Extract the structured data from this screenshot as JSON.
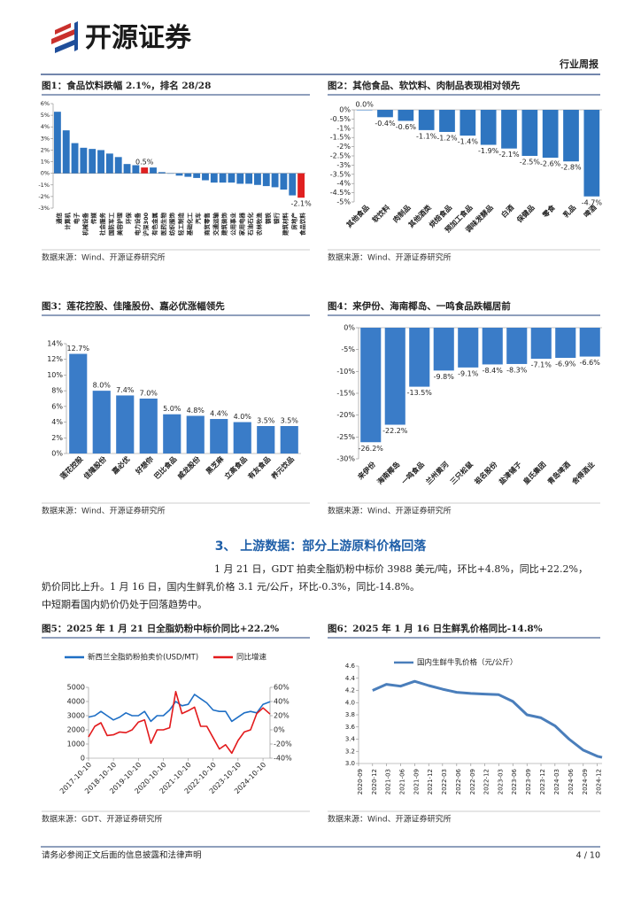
{
  "header": {
    "logo_text": "开源证券",
    "report_type": "行业周报"
  },
  "section_heading": "3、 上游数据：部分上游原料价格回落",
  "paragraph": [
    "1 月 21 日，GDT 拍卖全脂奶粉中标价 3988 美元/吨，环比+4.8%，同比+22.2%，",
    "奶价同比上升。1 月 16 日，国内生鲜乳价格 3.1 元/公斤，环比-0.3%，同比-14.8%。",
    "中短期看国内奶价仍处于回落趋势中。"
  ],
  "footer": {
    "disclaimer": "请务必参阅正文后面的信息披露和法律声明",
    "page": "4 / 10"
  },
  "chart_data": [
    {
      "type": "bar",
      "title": "图1：食品饮料跌幅 2.1%，排名 28/28",
      "source": "数据来源：Wind、开源证券研究所",
      "categories": [
        "通信",
        "计算机",
        "电子",
        "机械设备",
        "传媒",
        "社会服务",
        "国防军工",
        "美容护理",
        "环保",
        "电力设备",
        "沪深300",
        "有色金属",
        "医药生物",
        "纺织服饰",
        "轻工制造",
        "基础化工",
        "汽车",
        "商贸零售",
        "交通运输",
        "建筑装饰",
        "公用事业",
        "家用电器",
        "石油石化",
        "农林牧渔",
        "钢铁",
        "银行",
        "建筑材料",
        "房地产",
        "食品饮料"
      ],
      "values": [
        5.3,
        3.7,
        2.6,
        2.2,
        2.1,
        2.0,
        1.7,
        1.4,
        0.8,
        0.7,
        0.5,
        0.5,
        0.1,
        0.0,
        -0.2,
        -0.3,
        -0.4,
        -0.6,
        -0.8,
        -0.8,
        -0.8,
        -0.9,
        -0.9,
        -1.0,
        -1.1,
        -1.2,
        -1.4,
        -1.9,
        -2.1
      ],
      "value_labels": [
        null,
        null,
        null,
        null,
        null,
        null,
        null,
        null,
        null,
        null,
        "0.5%",
        null,
        null,
        null,
        null,
        null,
        null,
        null,
        null,
        null,
        null,
        null,
        null,
        null,
        null,
        null,
        null,
        null,
        "-2.1%"
      ],
      "colors": [
        "#2e75c0",
        "#2e75c0",
        "#2e75c0",
        "#2e75c0",
        "#2e75c0",
        "#2e75c0",
        "#2e75c0",
        "#2e75c0",
        "#2e75c0",
        "#2e75c0",
        "#e02020",
        "#2e75c0",
        "#2e75c0",
        "#2e75c0",
        "#2e75c0",
        "#2e75c0",
        "#2e75c0",
        "#2e75c0",
        "#2e75c0",
        "#2e75c0",
        "#2e75c0",
        "#2e75c0",
        "#2e75c0",
        "#2e75c0",
        "#2e75c0",
        "#2e75c0",
        "#2e75c0",
        "#2e75c0",
        "#e02020"
      ],
      "ylim": [
        -3,
        6
      ],
      "yticks": [
        {
          "value": -3,
          "label": "-3%"
        },
        {
          "value": -2,
          "label": "-2%"
        },
        {
          "value": -1,
          "label": "-1%"
        },
        {
          "value": 0,
          "label": "0%"
        },
        {
          "value": 1,
          "label": "1%"
        },
        {
          "value": 2,
          "label": "2%"
        },
        {
          "value": 3,
          "label": "3%"
        },
        {
          "value": 4,
          "label": "4%"
        },
        {
          "value": 5,
          "label": "5%"
        },
        {
          "value": 6,
          "label": "6%"
        }
      ]
    },
    {
      "type": "bar",
      "title": "图2：其他食品、软饮料、肉制品表现相对领先",
      "source": "数据来源：Wind、开源证券研究所",
      "color": "#2e75c0",
      "categories": [
        "其他食品",
        "软饮料",
        "肉制品",
        "其他酒类",
        "烘焙食品",
        "预加工食品",
        "调味发酵品",
        "白酒",
        "保健品",
        "零食",
        "乳品",
        "啤酒"
      ],
      "values": [
        0.0,
        -0.4,
        -0.6,
        -1.1,
        -1.2,
        -1.4,
        -1.9,
        -2.1,
        -2.5,
        -2.6,
        -2.8,
        -4.7
      ],
      "value_labels": [
        "0.0%",
        "-0.4%",
        "-0.6%",
        "-1.1%",
        "-1.2%",
        "-1.4%",
        "-1.9%",
        "-2.1%",
        "-2.5%",
        "-2.6%",
        "-2.8%",
        "-4.7%"
      ],
      "ylim": [
        -5,
        0
      ],
      "yticks": [
        {
          "value": -5,
          "label": "-5%"
        },
        {
          "value": -4.5,
          "label": "-4.5%"
        },
        {
          "value": -4,
          "label": "-4%"
        },
        {
          "value": -3.5,
          "label": "-3.5%"
        },
        {
          "value": -3,
          "label": "-3%"
        },
        {
          "value": -2.5,
          "label": "-2.5%"
        },
        {
          "value": -2,
          "label": "-2%"
        },
        {
          "value": -1.5,
          "label": "-1.5%"
        },
        {
          "value": -1,
          "label": "-1%"
        },
        {
          "value": -0.5,
          "label": "-0.5%"
        },
        {
          "value": 0,
          "label": "0%"
        }
      ]
    },
    {
      "type": "bar",
      "title": "图3：莲花控股、佳隆股份、嘉必优涨幅领先",
      "source": "数据来源：Wind、开源证券研究所",
      "color": "#3a7cc8",
      "categories": [
        "莲花控股",
        "佳隆股份",
        "嘉必优",
        "好想你",
        "巴比食品",
        "威龙股份",
        "黑芝麻",
        "立高食品",
        "有友食品",
        "养元饮品"
      ],
      "values": [
        12.7,
        8.0,
        7.4,
        7.0,
        5.0,
        4.8,
        4.4,
        4.0,
        3.5,
        3.5
      ],
      "value_labels": [
        "12.7%",
        "8.0%",
        "7.4%",
        "7.0%",
        "5.0%",
        "4.8%",
        "4.4%",
        "4.0%",
        "3.5%",
        "3.5%"
      ],
      "ylim": [
        0,
        14
      ],
      "yticks": [
        {
          "value": 0,
          "label": "0%"
        },
        {
          "value": 2,
          "label": "2%"
        },
        {
          "value": 4,
          "label": "4%"
        },
        {
          "value": 6,
          "label": "6%"
        },
        {
          "value": 8,
          "label": "8%"
        },
        {
          "value": 10,
          "label": "10%"
        },
        {
          "value": 12,
          "label": "12%"
        },
        {
          "value": 14,
          "label": "14%"
        }
      ]
    },
    {
      "type": "bar",
      "title": "图4：来伊份、海南椰岛、一鸣食品跌幅居前",
      "source": "数据来源：Wind、开源证券研究所",
      "color": "#3a7cc8",
      "categories": [
        "来伊份",
        "海南椰岛",
        "一鸣食品",
        "兰州黄河",
        "三只松鼠",
        "祖名股份",
        "盐津铺子",
        "皇氏集团",
        "青岛啤酒",
        "舍得酒业"
      ],
      "values": [
        -26.2,
        -22.2,
        -13.5,
        -9.8,
        -9.1,
        -8.4,
        -8.3,
        -7.1,
        -6.9,
        -6.6
      ],
      "value_labels": [
        "-26.2%",
        "-22.2%",
        "-13.5%",
        "-9.8%",
        "-9.1%",
        "-8.4%",
        "-8.3%",
        "-7.1%",
        "-6.9%",
        "-6.6%"
      ],
      "ylim": [
        -30,
        0
      ],
      "yticks": [
        {
          "value": -30,
          "label": "-30%"
        },
        {
          "value": -25,
          "label": "-25%"
        },
        {
          "value": -20,
          "label": "-20%"
        },
        {
          "value": -15,
          "label": "-15%"
        },
        {
          "value": -10,
          "label": "-10%"
        },
        {
          "value": -5,
          "label": "-5%"
        },
        {
          "value": 0,
          "label": "0%"
        }
      ]
    },
    {
      "type": "line",
      "title": "图5：2025 年 1 月 21 日全脂奶粉中标价同比+22.2%",
      "source": "数据来源：GDT、开源证券研究所",
      "x": [
        "2017-10-10",
        "2018-01-10",
        "2018-04-10",
        "2018-07-10",
        "2018-10-10",
        "2019-01-10",
        "2019-04-10",
        "2019-07-10",
        "2019-10-10",
        "2020-01-10",
        "2020-04-10",
        "2020-07-10",
        "2020-10-10",
        "2021-01-10",
        "2021-04-10",
        "2021-07-10",
        "2021-10-10",
        "2022-01-10",
        "2022-04-10",
        "2022-07-10",
        "2022-10-10",
        "2023-01-10",
        "2023-04-10",
        "2023-07-10",
        "2023-10-10",
        "2024-01-10",
        "2024-04-10",
        "2024-07-10",
        "2024-10-10",
        "2025-01-21"
      ],
      "series": [
        {
          "name": "新西兰全脂奶粉拍卖价(USD/MT)",
          "color": "#1f6fc5",
          "values": [
            2900,
            3000,
            3300,
            3000,
            2700,
            2900,
            3200,
            3000,
            3000,
            3300,
            2600,
            3000,
            3000,
            3400,
            4000,
            3700,
            3800,
            4500,
            4200,
            3900,
            3400,
            3300,
            3300,
            2600,
            2900,
            3200,
            3300,
            3200,
            3800,
            3988
          ]
        },
        {
          "name": "同比增速",
          "color": "#e31a1c",
          "axis": "y2",
          "values": [
            -10,
            5,
            10,
            -8,
            -7,
            -3,
            -4,
            0,
            11,
            14,
            -19,
            0,
            0,
            3,
            54,
            23,
            27,
            32,
            5,
            5,
            -11,
            -27,
            -21,
            -33,
            -15,
            -3,
            0,
            23,
            31,
            22.2
          ]
        }
      ],
      "xlim": [
        "2017-10-10",
        "2025-01-21"
      ],
      "xticks": [
        "2017-10-10",
        "2018-10-10",
        "2019-10-10",
        "2020-10-10",
        "2021-10-10",
        "2022-10-10",
        "2023-10-10",
        "2024-10-10"
      ],
      "ylim": [
        0,
        5000
      ],
      "yticks": [
        0,
        1000,
        2000,
        3000,
        4000,
        5000
      ],
      "y2lim": [
        -40,
        60
      ],
      "y2ticks": [
        {
          "value": -40,
          "label": "-40%"
        },
        {
          "value": -20,
          "label": "-20%"
        },
        {
          "value": 0,
          "label": "0%"
        },
        {
          "value": 20,
          "label": "20%"
        },
        {
          "value": 40,
          "label": "40%"
        },
        {
          "value": 60,
          "label": "60%"
        }
      ]
    },
    {
      "type": "line",
      "title": "图6：2025 年 1 月 16 日生鲜乳价格同比-14.8%",
      "source": "数据来源：Wind、开源证券研究所",
      "x": [
        "2020-12",
        "2021-03",
        "2021-06",
        "2021-09",
        "2021-12",
        "2022-03",
        "2022-06",
        "2022-09",
        "2022-12",
        "2023-03",
        "2023-06",
        "2023-09",
        "2023-12",
        "2024-03",
        "2024-06",
        "2024-09",
        "2024-12",
        "2025-01"
      ],
      "series": [
        {
          "name": "国内生鲜牛乳价格（元/公斤）",
          "color": "#4a7ebb",
          "values": [
            4.2,
            4.3,
            4.27,
            4.35,
            4.28,
            4.22,
            4.17,
            4.15,
            4.14,
            4.13,
            4.02,
            3.8,
            3.75,
            3.62,
            3.4,
            3.22,
            3.12,
            3.1
          ]
        }
      ],
      "xlim": [
        "2020-09",
        "2025-01"
      ],
      "xticks": [
        "2020-09",
        "2020-12",
        "2021-03",
        "2021-06",
        "2021-09",
        "2021-12",
        "2022-03",
        "2022-06",
        "2022-09",
        "2022-12",
        "2023-03",
        "2023-06",
        "2023-09",
        "2023-12",
        "2024-03",
        "2024-06",
        "2024-09",
        "2024-12"
      ],
      "ylim": [
        3,
        4.6
      ],
      "yticks": [
        {
          "value": 3,
          "label": "3.0"
        },
        3.2,
        3.4,
        3.6,
        3.8,
        {
          "value": 4,
          "label": "4.0"
        },
        4.2,
        4.4,
        4.6
      ]
    }
  ]
}
